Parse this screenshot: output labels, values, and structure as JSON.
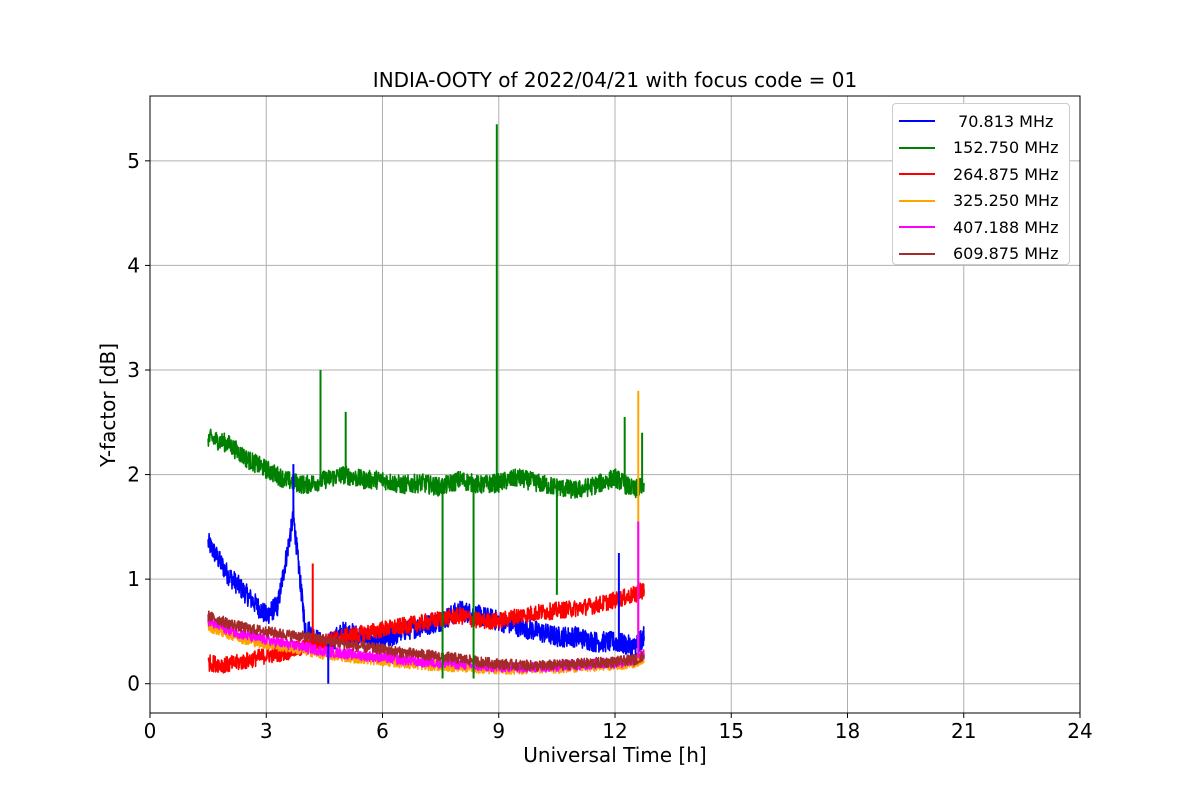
{
  "chart_data": {
    "type": "line",
    "title": "INDIA-OOTY of 2022/04/21 with focus code = 01",
    "xlabel": "Universal Time [h]",
    "ylabel": "Y-factor [dB]",
    "xlim": [
      0,
      24
    ],
    "ylim": [
      -0.28,
      5.62
    ],
    "x_ticks": [
      0,
      3,
      6,
      9,
      12,
      15,
      18,
      21,
      24
    ],
    "y_ticks": [
      0,
      1,
      2,
      3,
      4,
      5
    ],
    "grid": true,
    "legend_position": "top-right",
    "series": [
      {
        "name": " 70.813 MHz",
        "color": "#0000ff",
        "x": [
          1.5,
          2.0,
          2.5,
          3.0,
          3.3,
          3.7,
          4.0,
          4.5,
          5.0,
          5.5,
          6.0,
          6.5,
          7.0,
          7.5,
          8.0,
          8.5,
          9.0,
          9.5,
          10.0,
          10.5,
          11.0,
          11.5,
          12.0,
          12.5,
          12.75
        ],
        "y": [
          1.35,
          1.05,
          0.85,
          0.65,
          0.75,
          1.6,
          0.55,
          0.35,
          0.5,
          0.45,
          0.4,
          0.5,
          0.55,
          0.6,
          0.7,
          0.65,
          0.6,
          0.55,
          0.5,
          0.45,
          0.45,
          0.4,
          0.4,
          0.35,
          0.45
        ]
      },
      {
        "name": "152.750 MHz",
        "color": "#008000",
        "x": [
          1.5,
          2.0,
          2.5,
          3.0,
          3.5,
          4.0,
          4.5,
          5.0,
          5.5,
          6.0,
          6.5,
          7.0,
          7.5,
          8.0,
          8.5,
          9.0,
          9.5,
          10.0,
          10.5,
          11.0,
          11.5,
          12.0,
          12.5,
          12.75
        ],
        "y": [
          2.35,
          2.3,
          2.15,
          2.05,
          1.95,
          1.9,
          1.95,
          2.0,
          1.95,
          1.95,
          1.9,
          1.92,
          1.88,
          1.95,
          1.9,
          1.92,
          1.97,
          1.92,
          1.88,
          1.85,
          1.9,
          1.97,
          1.85,
          1.9
        ]
      },
      {
        "name": "264.875 MHz",
        "color": "#ff0000",
        "x": [
          1.5,
          2.0,
          2.5,
          3.0,
          3.5,
          4.0,
          4.5,
          5.0,
          5.5,
          6.0,
          6.5,
          7.0,
          7.5,
          8.0,
          8.5,
          9.0,
          9.5,
          10.0,
          10.5,
          11.0,
          11.5,
          12.0,
          12.5,
          12.75
        ],
        "y": [
          0.2,
          0.18,
          0.22,
          0.27,
          0.3,
          0.35,
          0.4,
          0.45,
          0.48,
          0.52,
          0.55,
          0.58,
          0.62,
          0.65,
          0.6,
          0.6,
          0.65,
          0.68,
          0.7,
          0.72,
          0.75,
          0.8,
          0.85,
          0.9
        ]
      },
      {
        "name": "325.250 MHz",
        "color": "#ffa500",
        "x": [
          1.5,
          2.0,
          2.5,
          3.0,
          3.5,
          4.0,
          4.5,
          5.0,
          5.5,
          6.0,
          6.5,
          7.0,
          7.5,
          8.0,
          8.5,
          9.0,
          9.5,
          10.0,
          10.5,
          11.0,
          11.5,
          12.0,
          12.5,
          12.75
        ],
        "y": [
          0.55,
          0.48,
          0.42,
          0.38,
          0.35,
          0.32,
          0.28,
          0.26,
          0.24,
          0.22,
          0.2,
          0.18,
          0.17,
          0.16,
          0.15,
          0.14,
          0.14,
          0.15,
          0.15,
          0.16,
          0.17,
          0.18,
          0.2,
          0.25
        ]
      },
      {
        "name": "407.188 MHz",
        "color": "#ff00ff",
        "x": [
          1.5,
          2.0,
          2.5,
          3.0,
          3.5,
          4.0,
          4.5,
          5.0,
          5.5,
          6.0,
          6.5,
          7.0,
          7.5,
          8.0,
          8.5,
          9.0,
          9.5,
          10.0,
          10.5,
          11.0,
          11.5,
          12.0,
          12.5,
          12.75
        ],
        "y": [
          0.6,
          0.52,
          0.46,
          0.42,
          0.38,
          0.35,
          0.31,
          0.29,
          0.27,
          0.25,
          0.23,
          0.21,
          0.2,
          0.19,
          0.17,
          0.16,
          0.16,
          0.16,
          0.17,
          0.18,
          0.19,
          0.2,
          0.22,
          0.28
        ]
      },
      {
        "name": "609.875 MHz",
        "color": "#a52a2a",
        "x": [
          1.5,
          2.0,
          2.5,
          3.0,
          3.5,
          4.0,
          4.5,
          5.0,
          5.5,
          6.0,
          6.5,
          7.0,
          7.5,
          8.0,
          8.5,
          9.0,
          9.5,
          10.0,
          10.5,
          11.0,
          11.5,
          12.0,
          12.5,
          12.75
        ],
        "y": [
          0.65,
          0.58,
          0.53,
          0.5,
          0.47,
          0.45,
          0.42,
          0.38,
          0.35,
          0.33,
          0.3,
          0.28,
          0.26,
          0.24,
          0.21,
          0.19,
          0.18,
          0.17,
          0.18,
          0.19,
          0.2,
          0.21,
          0.23,
          0.27
        ]
      }
    ],
    "spikes": [
      {
        "series": 1,
        "x": 8.95,
        "y": 5.35
      },
      {
        "series": 1,
        "x": 4.4,
        "y": 3.0
      },
      {
        "series": 1,
        "x": 5.05,
        "y": 2.6
      },
      {
        "series": 1,
        "x": 12.25,
        "y": 2.55
      },
      {
        "series": 1,
        "x": 12.7,
        "y": 2.4
      },
      {
        "series": 1,
        "x": 7.55,
        "y": 0.05
      },
      {
        "series": 1,
        "x": 8.35,
        "y": 0.05
      },
      {
        "series": 1,
        "x": 10.5,
        "y": 0.85
      },
      {
        "series": 0,
        "x": 3.7,
        "y": 2.1
      },
      {
        "series": 0,
        "x": 4.6,
        "y": 0.0
      },
      {
        "series": 0,
        "x": 12.1,
        "y": 1.25
      },
      {
        "series": 2,
        "x": 4.2,
        "y": 1.15
      },
      {
        "series": 3,
        "x": 12.6,
        "y": 2.8
      },
      {
        "series": 4,
        "x": 12.6,
        "y": 1.55
      }
    ]
  }
}
